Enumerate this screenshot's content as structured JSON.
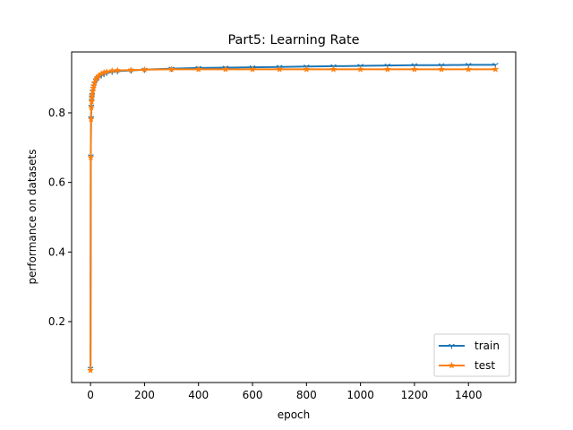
{
  "chart_data": {
    "type": "line",
    "title": "Part5: Learning Rate",
    "xlabel": "epoch",
    "ylabel": "performance on datasets",
    "xlim": [
      -70,
      1575
    ],
    "ylim": [
      0.025,
      0.975
    ],
    "xticks": [
      0,
      200,
      400,
      600,
      800,
      1000,
      1200,
      1400
    ],
    "yticks": [
      0.2,
      0.4,
      0.6,
      0.8
    ],
    "grid": false,
    "legend_position": "lower-right",
    "series": [
      {
        "name": "train",
        "color": "#1f77b4",
        "marker": "tri-down",
        "x": [
          0,
          1,
          2,
          3,
          4,
          5,
          6,
          8,
          10,
          12,
          15,
          20,
          25,
          30,
          40,
          50,
          60,
          80,
          100,
          150,
          200,
          300,
          400,
          500,
          600,
          700,
          800,
          900,
          1000,
          1100,
          1200,
          1300,
          1400,
          1500
        ],
        "y": [
          0.065,
          0.675,
          0.785,
          0.818,
          0.835,
          0.845,
          0.852,
          0.862,
          0.87,
          0.876,
          0.884,
          0.892,
          0.898,
          0.902,
          0.908,
          0.912,
          0.915,
          0.918,
          0.92,
          0.922,
          0.924,
          0.927,
          0.929,
          0.93,
          0.931,
          0.932,
          0.933,
          0.934,
          0.935,
          0.936,
          0.937,
          0.937,
          0.938,
          0.938
        ]
      },
      {
        "name": "test",
        "color": "#ff7f0e",
        "marker": "star",
        "x": [
          0,
          1,
          2,
          3,
          4,
          5,
          6,
          8,
          10,
          12,
          15,
          20,
          25,
          30,
          40,
          50,
          60,
          80,
          100,
          150,
          200,
          300,
          400,
          500,
          600,
          700,
          800,
          900,
          1000,
          1100,
          1200,
          1300,
          1400,
          1500
        ],
        "y": [
          0.06,
          0.672,
          0.782,
          0.815,
          0.832,
          0.843,
          0.851,
          0.862,
          0.871,
          0.878,
          0.887,
          0.896,
          0.902,
          0.906,
          0.912,
          0.916,
          0.918,
          0.921,
          0.922,
          0.923,
          0.924,
          0.925,
          0.925,
          0.925,
          0.925,
          0.925,
          0.925,
          0.925,
          0.925,
          0.925,
          0.925,
          0.925,
          0.925,
          0.925
        ]
      }
    ]
  }
}
